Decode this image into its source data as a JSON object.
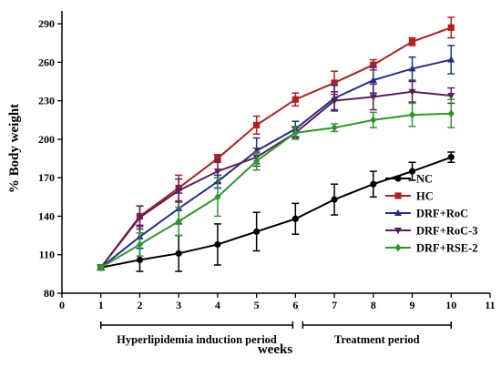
{
  "chart_data": {
    "type": "line",
    "xlabel": "weeks",
    "ylabel": "% Body weight",
    "xlim": [
      0,
      11
    ],
    "ylim": [
      80,
      300
    ],
    "xticks": [
      0,
      1,
      2,
      3,
      4,
      5,
      6,
      7,
      8,
      9,
      10,
      11
    ],
    "yticks": [
      80,
      110,
      140,
      170,
      200,
      230,
      260,
      290
    ],
    "x": [
      1,
      2,
      3,
      4,
      5,
      6,
      7,
      8,
      9,
      10
    ],
    "grid": false,
    "legend_position": "right",
    "periods": [
      {
        "label": "Hyperlipidemia induction  period",
        "from": 1,
        "to": 6
      },
      {
        "label": "Treatment period",
        "from": 6,
        "to": 10
      }
    ],
    "series": [
      {
        "name": "NC",
        "color": "#000000",
        "marker": "circle",
        "values": [
          100,
          106,
          111,
          118,
          128,
          138,
          153,
          165,
          175,
          186
        ],
        "errors": [
          2,
          9,
          14,
          16,
          15,
          12,
          12,
          10,
          7,
          4
        ]
      },
      {
        "name": "HC",
        "color": "#b21f1f",
        "marker": "square",
        "values": [
          100,
          140,
          162,
          185,
          211,
          231,
          244,
          258,
          276,
          287
        ],
        "errors": [
          2,
          8,
          10,
          3,
          7,
          5,
          9,
          4,
          3,
          8
        ]
      },
      {
        "name": "DRF+RoC",
        "color": "#1f2f8f",
        "marker": "triangle-up",
        "values": [
          100,
          124,
          146,
          167,
          191,
          208,
          232,
          246,
          255,
          262
        ],
        "errors": [
          2,
          9,
          12,
          5,
          10,
          6,
          10,
          10,
          9,
          11
        ]
      },
      {
        "name": "DRF+RoC-3",
        "color": "#5b1f5b",
        "marker": "triangle-down",
        "values": [
          100,
          139,
          160,
          175,
          186,
          205,
          230,
          233,
          237,
          234
        ],
        "errors": [
          2,
          9,
          9,
          9,
          7,
          4,
          7,
          10,
          8,
          6
        ]
      },
      {
        "name": "DRF+RSE-2",
        "color": "#2a9a2a",
        "marker": "diamond",
        "values": [
          100,
          118,
          136,
          155,
          183,
          205,
          209,
          215,
          219,
          220
        ],
        "errors": [
          2,
          9,
          11,
          15,
          7,
          5,
          3,
          6,
          9,
          11
        ]
      }
    ]
  }
}
